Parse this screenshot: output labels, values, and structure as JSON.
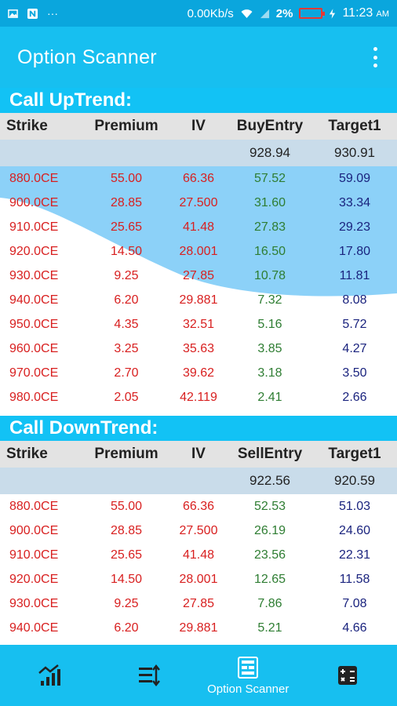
{
  "statusbar": {
    "speed": "0.00Kb/s",
    "battery": "2%",
    "time": "11:23",
    "ampm": "AM"
  },
  "appbar": {
    "title": "Option Scanner"
  },
  "up": {
    "title": "Call UpTrend:",
    "headers": [
      "Strike",
      "Premium",
      "IV",
      "BuyEntry",
      "Target1"
    ],
    "entry": "928.94",
    "target": "930.91",
    "rows": [
      [
        "880.0CE",
        "55.00",
        "66.36",
        "57.52",
        "59.09"
      ],
      [
        "900.0CE",
        "28.85",
        "27.500",
        "31.60",
        "33.34"
      ],
      [
        "910.0CE",
        "25.65",
        "41.48",
        "27.83",
        "29.23"
      ],
      [
        "920.0CE",
        "14.50",
        "28.001",
        "16.50",
        "17.80"
      ],
      [
        "930.0CE",
        "9.25",
        "27.85",
        "10.78",
        "11.81"
      ],
      [
        "940.0CE",
        "6.20",
        "29.881",
        "7.32",
        "8.08"
      ],
      [
        "950.0CE",
        "4.35",
        "32.51",
        "5.16",
        "5.72"
      ],
      [
        "960.0CE",
        "3.25",
        "35.63",
        "3.85",
        "4.27"
      ],
      [
        "970.0CE",
        "2.70",
        "39.62",
        "3.18",
        "3.50"
      ],
      [
        "980.0CE",
        "2.05",
        "42.119",
        "2.41",
        "2.66"
      ]
    ]
  },
  "down": {
    "title": "Call DownTrend:",
    "headers": [
      "Strike",
      "Premium",
      "IV",
      "SellEntry",
      "Target1"
    ],
    "entry": "922.56",
    "target": "920.59",
    "rows": [
      [
        "880.0CE",
        "55.00",
        "66.36",
        "52.53",
        "51.03"
      ],
      [
        "900.0CE",
        "28.85",
        "27.500",
        "26.19",
        "24.60"
      ],
      [
        "910.0CE",
        "25.65",
        "41.48",
        "23.56",
        "22.31"
      ],
      [
        "920.0CE",
        "14.50",
        "28.001",
        "12.65",
        "11.58"
      ],
      [
        "930.0CE",
        "9.25",
        "27.85",
        "7.86",
        "7.08"
      ],
      [
        "940.0CE",
        "6.20",
        "29.881",
        "5.21",
        "4.66"
      ]
    ]
  },
  "nav": {
    "items": [
      {
        "icon": "chart-icon",
        "label": ""
      },
      {
        "icon": "filter-list-icon",
        "label": ""
      },
      {
        "icon": "scanner-icon",
        "label": "Option Scanner"
      },
      {
        "icon": "calculator-icon",
        "label": ""
      }
    ]
  },
  "colors": {
    "appbar": "#17bff0",
    "statusbar": "#0aa6dd",
    "call": "#d81f1f",
    "entry": "#2e7d32",
    "target": "#1a237e"
  }
}
